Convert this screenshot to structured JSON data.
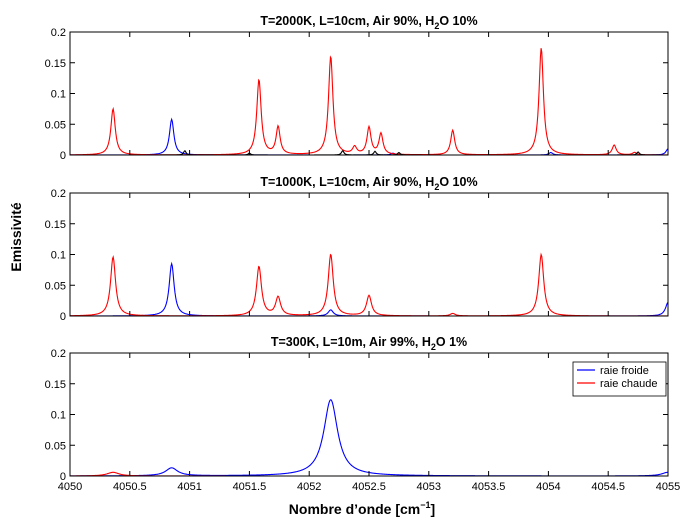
{
  "chart_data": {
    "type": "line",
    "xlabel_main": "Nombre d’onde [cm",
    "xlabel_sup": "−1",
    "xlabel_close": "]",
    "ylabel": "Emissivité",
    "xlim": [
      4050,
      4055
    ],
    "ylim": [
      0,
      0.2
    ],
    "x_ticks": [
      "4050",
      "4050.5",
      "4051",
      "4051.5",
      "4052",
      "4052.5",
      "4053",
      "4053.5",
      "4054",
      "4054.5",
      "4055"
    ],
    "x_tick_values": [
      4050,
      4050.5,
      4051,
      4051.5,
      4052,
      4052.5,
      4053,
      4053.5,
      4054,
      4054.5,
      4055
    ],
    "y_ticks": [
      "0",
      "0.05",
      "0.1",
      "0.15",
      "0.2"
    ],
    "y_tick_values": [
      0,
      0.05,
      0.1,
      0.15,
      0.2
    ],
    "grid": false,
    "legend": {
      "placement": "top-right",
      "panel": 2,
      "entries": [
        {
          "label": "raie froide",
          "color": "#0000ff"
        },
        {
          "label": "raie chaude",
          "color": "#ff0000"
        }
      ]
    },
    "series_colors": {
      "raie froide": "#0000ff",
      "raie chaude": "#ff0000",
      "other": "#000000"
    },
    "panels": [
      {
        "title_main": "T=2000K, L=10cm, Air 90%, H",
        "title_sub": "2",
        "title_end": "O 10%",
        "series": [
          {
            "name": "raie froide",
            "color": "#0000ff",
            "peaks": [
              [
                4050.85,
                0.058,
                0.022
              ],
              [
                4052.7,
                0.003,
                0.02
              ],
              [
                4054.02,
                0.004,
                0.02
              ],
              [
                4055.0,
                0.01,
                0.02
              ]
            ]
          },
          {
            "name": "raie chaude",
            "color": "#ff0000",
            "peaks": [
              [
                4050.36,
                0.075,
                0.022
              ],
              [
                4051.58,
                0.122,
                0.022
              ],
              [
                4051.74,
                0.045,
                0.02
              ],
              [
                4052.18,
                0.16,
                0.022
              ],
              [
                4052.38,
                0.012,
                0.02
              ],
              [
                4052.5,
                0.044,
                0.02
              ],
              [
                4052.6,
                0.034,
                0.02
              ],
              [
                4053.2,
                0.04,
                0.02
              ],
              [
                4053.94,
                0.174,
                0.022
              ],
              [
                4054.55,
                0.016,
                0.02
              ],
              [
                4054.72,
                0.004,
                0.02
              ]
            ]
          },
          {
            "name": "other",
            "color": "#000000",
            "peaks": [
              [
                4050.96,
                0.007,
                0.012
              ],
              [
                4051.5,
                0.003,
                0.012
              ],
              [
                4052.28,
                0.007,
                0.012
              ],
              [
                4052.55,
                0.006,
                0.012
              ],
              [
                4052.75,
                0.004,
                0.012
              ],
              [
                4054.75,
                0.005,
                0.012
              ]
            ]
          }
        ]
      },
      {
        "title_main": "T=1000K, L=10cm, Air 90%, H",
        "title_sub": "2",
        "title_end": "O 10%",
        "series": [
          {
            "name": "raie froide",
            "color": "#0000ff",
            "peaks": [
              [
                4050.85,
                0.085,
                0.025
              ],
              [
                4052.18,
                0.01,
                0.025
              ],
              [
                4055.0,
                0.022,
                0.025
              ]
            ]
          },
          {
            "name": "raie chaude",
            "color": "#ff0000",
            "peaks": [
              [
                4050.36,
                0.096,
                0.025
              ],
              [
                4051.58,
                0.08,
                0.025
              ],
              [
                4051.74,
                0.03,
                0.025
              ],
              [
                4052.18,
                0.1,
                0.025
              ],
              [
                4052.5,
                0.033,
                0.025
              ],
              [
                4053.2,
                0.004,
                0.025
              ],
              [
                4053.94,
                0.1,
                0.025
              ]
            ]
          },
          {
            "name": "other",
            "color": "#000000",
            "peaks": []
          }
        ]
      },
      {
        "title_main": "T=300K, L=10m, Air 99%, H",
        "title_sub": "2",
        "title_end": "O 1%",
        "series": [
          {
            "name": "raie froide",
            "color": "#0000ff",
            "peaks": [
              [
                4050.85,
                0.013,
                0.06
              ],
              [
                4052.18,
                0.124,
                0.07
              ],
              [
                4055.0,
                0.006,
                0.06
              ]
            ]
          },
          {
            "name": "raie chaude",
            "color": "#ff0000",
            "peaks": [
              [
                4050.36,
                0.006,
                0.06
              ]
            ]
          }
        ]
      }
    ]
  }
}
